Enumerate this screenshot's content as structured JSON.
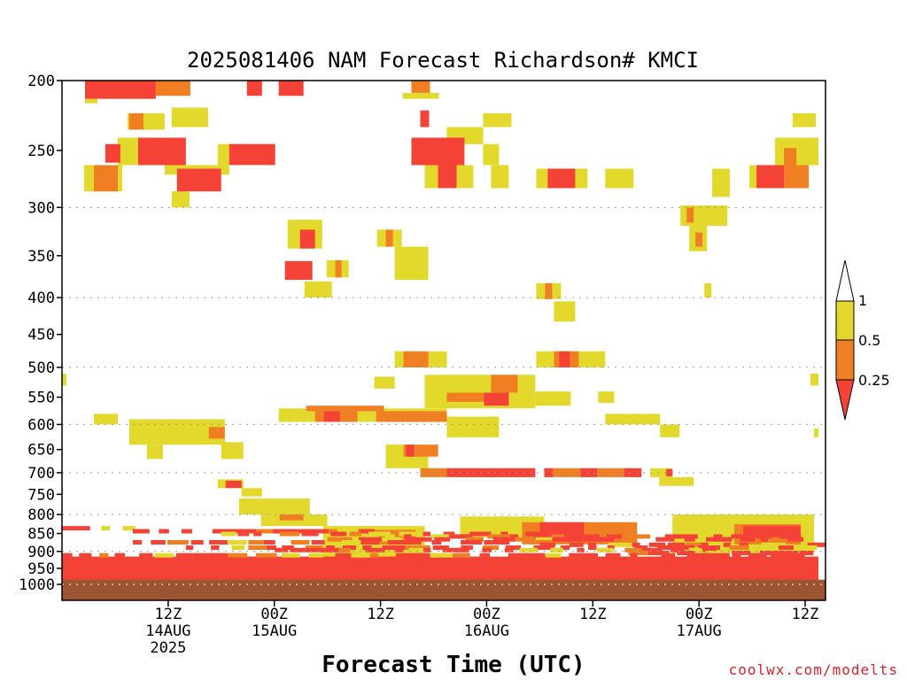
{
  "chart_data": {
    "type": "heatmap",
    "title": "2025081406 NAM Forecast Richardson# KMCI",
    "xlabel": "Forecast Time (UTC)",
    "ylabel": "",
    "credit": "coolwx.com/modelts",
    "y_scale": "log-pressure (hPa, inverted)",
    "ylim": [
      1000,
      200
    ],
    "y_ticks": [
      "200",
      "250",
      "300",
      "350",
      "400",
      "450",
      "500",
      "550",
      "600",
      "650",
      "700",
      "750",
      "800",
      "850",
      "900",
      "950",
      "1000"
    ],
    "y_gridlines": [
      "300",
      "400",
      "500",
      "600",
      "700",
      "800",
      "900",
      "1000"
    ],
    "x_hour_range": [
      6,
      90
    ],
    "x_ticks": [
      {
        "hour": 18,
        "line1": "12Z",
        "line2": "14AUG",
        "line3": "2025"
      },
      {
        "hour": 30,
        "line1": "00Z",
        "line2": "15AUG",
        "line3": ""
      },
      {
        "hour": 42,
        "line1": "12Z",
        "line2": "",
        "line3": ""
      },
      {
        "hour": 54,
        "line1": "00Z",
        "line2": "16AUG",
        "line3": ""
      },
      {
        "hour": 66,
        "line1": "12Z",
        "line2": "",
        "line3": ""
      },
      {
        "hour": 78,
        "line1": "00Z",
        "line2": "17AUG",
        "line3": ""
      },
      {
        "hour": 90,
        "line1": "12Z",
        "line2": "",
        "line3": ""
      }
    ],
    "legend": {
      "placement": "right",
      "levels": [
        "1",
        "0.5",
        "0.25"
      ],
      "bins": [
        {
          "range": "< 0.25",
          "color": "#f44336"
        },
        {
          "range": "0.25 - 0.5",
          "color": "#ef7f22"
        },
        {
          "range": "0.5 - 1",
          "color": "#e2d92c"
        },
        {
          "range": "> 1",
          "color": "#ffffff"
        }
      ]
    },
    "ground_color": "#9b5530",
    "grid": true,
    "regions": [
      {
        "value": "red",
        "t0": 8.6,
        "t1": 16.6,
        "p0": 200,
        "p1": 212
      },
      {
        "value": "orange",
        "t0": 16.6,
        "t1": 20.5,
        "p0": 200,
        "p1": 210
      },
      {
        "value": "yellow",
        "t0": 8.6,
        "t1": 10,
        "p0": 200,
        "p1": 215
      },
      {
        "value": "red",
        "t0": 26.9,
        "t1": 28.6,
        "p0": 200,
        "p1": 210
      },
      {
        "value": "red",
        "t0": 30.5,
        "t1": 33.3,
        "p0": 200,
        "p1": 210
      },
      {
        "value": "orange",
        "t0": 45.5,
        "t1": 47.6,
        "p0": 200,
        "p1": 208
      },
      {
        "value": "yellow",
        "t0": 44.5,
        "t1": 48.6,
        "p0": 208,
        "p1": 212
      },
      {
        "value": "yellow",
        "t0": 13.4,
        "t1": 17.6,
        "p0": 222,
        "p1": 234
      },
      {
        "value": "orange",
        "t0": 13.6,
        "t1": 15.2,
        "p0": 222,
        "p1": 234
      },
      {
        "value": "yellow",
        "t0": 18.4,
        "t1": 22.5,
        "p0": 218,
        "p1": 232
      },
      {
        "value": "red",
        "t0": 14.6,
        "t1": 20,
        "p0": 240,
        "p1": 262
      },
      {
        "value": "yellow",
        "t0": 12.3,
        "t1": 14.6,
        "p0": 240,
        "p1": 262
      },
      {
        "value": "red",
        "t0": 24.9,
        "t1": 30.1,
        "p0": 245,
        "p1": 262
      },
      {
        "value": "yellow",
        "t0": 23.6,
        "t1": 25,
        "p0": 245,
        "p1": 262
      },
      {
        "value": "red",
        "t0": 10.9,
        "t1": 12.6,
        "p0": 245,
        "p1": 260
      },
      {
        "value": "yellow",
        "t0": 8.5,
        "t1": 12.8,
        "p0": 262,
        "p1": 285
      },
      {
        "value": "orange",
        "t0": 9.6,
        "t1": 12.3,
        "p0": 262,
        "p1": 285
      },
      {
        "value": "red",
        "t0": 19,
        "t1": 24,
        "p0": 265,
        "p1": 285
      },
      {
        "value": "yellow",
        "t0": 17.6,
        "t1": 24.9,
        "p0": 262,
        "p1": 270
      },
      {
        "value": "yellow",
        "t0": 18.4,
        "t1": 20.4,
        "p0": 285,
        "p1": 300
      },
      {
        "value": "red",
        "t0": 45.5,
        "t1": 51.5,
        "p0": 240,
        "p1": 262
      },
      {
        "value": "yellow",
        "t0": 49.5,
        "t1": 53.6,
        "p0": 232,
        "p1": 245
      },
      {
        "value": "red",
        "t0": 48.5,
        "t1": 50.6,
        "p0": 262,
        "p1": 282
      },
      {
        "value": "yellow",
        "t0": 47,
        "t1": 52.5,
        "p0": 262,
        "p1": 282
      },
      {
        "value": "red",
        "t0": 46.5,
        "t1": 47.5,
        "p0": 220,
        "p1": 232
      },
      {
        "value": "yellow",
        "t0": 53.6,
        "t1": 55.4,
        "p0": 245,
        "p1": 262
      },
      {
        "value": "yellow",
        "t0": 53.6,
        "t1": 56.8,
        "p0": 222,
        "p1": 232
      },
      {
        "value": "yellow",
        "t0": 54.5,
        "t1": 56.5,
        "p0": 262,
        "p1": 282
      },
      {
        "value": "red",
        "t0": 60.9,
        "t1": 64,
        "p0": 265,
        "p1": 282
      },
      {
        "value": "yellow",
        "t0": 59.6,
        "t1": 65.4,
        "p0": 265,
        "p1": 282
      },
      {
        "value": "yellow",
        "t0": 67.4,
        "t1": 70.6,
        "p0": 265,
        "p1": 282
      },
      {
        "value": "yellow",
        "t0": 79.5,
        "t1": 81.5,
        "p0": 265,
        "p1": 290
      },
      {
        "value": "red",
        "t0": 84.5,
        "t1": 87.6,
        "p0": 262,
        "p1": 282
      },
      {
        "value": "orange",
        "t0": 87.6,
        "t1": 90.4,
        "p0": 262,
        "p1": 282
      },
      {
        "value": "yellow",
        "t0": 83.7,
        "t1": 84.5,
        "p0": 262,
        "p1": 282
      },
      {
        "value": "yellow",
        "t0": 86.6,
        "t1": 91.5,
        "p0": 240,
        "p1": 262
      },
      {
        "value": "orange",
        "t0": 87.6,
        "t1": 89,
        "p0": 248,
        "p1": 262
      },
      {
        "value": "yellow",
        "t0": 88.6,
        "t1": 91.2,
        "p0": 222,
        "p1": 232
      },
      {
        "value": "orange",
        "t0": 76.6,
        "t1": 77.4,
        "p0": 300,
        "p1": 315
      },
      {
        "value": "yellow",
        "t0": 75.9,
        "t1": 81.2,
        "p0": 298,
        "p1": 318
      },
      {
        "value": "orange",
        "t0": 77.6,
        "t1": 78.4,
        "p0": 325,
        "p1": 340
      },
      {
        "value": "yellow",
        "t0": 76.9,
        "t1": 78.9,
        "p0": 318,
        "p1": 345
      },
      {
        "value": "red",
        "t0": 32.9,
        "t1": 34.6,
        "p0": 322,
        "p1": 342
      },
      {
        "value": "yellow",
        "t0": 31.5,
        "t1": 35.4,
        "p0": 312,
        "p1": 342
      },
      {
        "value": "red",
        "t0": 31.2,
        "t1": 34.3,
        "p0": 356,
        "p1": 378
      },
      {
        "value": "orange",
        "t0": 36.9,
        "t1": 37.6,
        "p0": 355,
        "p1": 375
      },
      {
        "value": "yellow",
        "t0": 35.9,
        "t1": 38.4,
        "p0": 355,
        "p1": 375
      },
      {
        "value": "yellow",
        "t0": 33.4,
        "t1": 36.5,
        "p0": 380,
        "p1": 400
      },
      {
        "value": "orange",
        "t0": 42.6,
        "t1": 43.4,
        "p0": 322,
        "p1": 340
      },
      {
        "value": "yellow",
        "t0": 41.6,
        "t1": 44.4,
        "p0": 322,
        "p1": 340
      },
      {
        "value": "yellow",
        "t0": 43.6,
        "t1": 47.4,
        "p0": 340,
        "p1": 378
      },
      {
        "value": "yellow",
        "t0": 59.6,
        "t1": 62.4,
        "p0": 382,
        "p1": 402
      },
      {
        "value": "orange",
        "t0": 60.6,
        "t1": 61.4,
        "p0": 382,
        "p1": 402
      },
      {
        "value": "yellow",
        "t0": 61.6,
        "t1": 64,
        "p0": 405,
        "p1": 432
      },
      {
        "value": "yellow",
        "t0": 78.6,
        "t1": 79.4,
        "p0": 382,
        "p1": 400
      },
      {
        "value": "orange",
        "t0": 44.6,
        "t1": 47.4,
        "p0": 475,
        "p1": 500
      },
      {
        "value": "yellow",
        "t0": 43.6,
        "t1": 49.5,
        "p0": 475,
        "p1": 500
      },
      {
        "value": "orange",
        "t0": 61.6,
        "t1": 64.4,
        "p0": 475,
        "p1": 500
      },
      {
        "value": "red",
        "t0": 62.2,
        "t1": 63.4,
        "p0": 475,
        "p1": 500
      },
      {
        "value": "yellow",
        "t0": 59.6,
        "t1": 67.4,
        "p0": 475,
        "p1": 500
      },
      {
        "value": "yellow",
        "t0": 41.3,
        "t1": 43.6,
        "p0": 515,
        "p1": 535
      },
      {
        "value": "yellow",
        "t0": 6,
        "t1": 6.5,
        "p0": 510,
        "p1": 530
      },
      {
        "value": "yellow",
        "t0": 90.6,
        "t1": 91.5,
        "p0": 510,
        "p1": 530
      },
      {
        "value": "orange",
        "t0": 49.5,
        "t1": 56.5,
        "p0": 542,
        "p1": 558
      },
      {
        "value": "red",
        "t0": 53.7,
        "t1": 56.5,
        "p0": 542,
        "p1": 565
      },
      {
        "value": "orange",
        "t0": 54.5,
        "t1": 57.5,
        "p0": 512,
        "p1": 542
      },
      {
        "value": "yellow",
        "t0": 47,
        "t1": 59.5,
        "p0": 512,
        "p1": 570
      },
      {
        "value": "yellow",
        "t0": 59.5,
        "t1": 63.5,
        "p0": 540,
        "p1": 565
      },
      {
        "value": "yellow",
        "t0": 66.6,
        "t1": 68.4,
        "p0": 540,
        "p1": 560
      },
      {
        "value": "orange",
        "t0": 33.6,
        "t1": 42.4,
        "p0": 565,
        "p1": 575
      },
      {
        "value": "red",
        "t0": 35.6,
        "t1": 37.4,
        "p0": 575,
        "p1": 595
      },
      {
        "value": "orange",
        "t0": 34.6,
        "t1": 39.4,
        "p0": 575,
        "p1": 595
      },
      {
        "value": "orange",
        "t0": 41.5,
        "t1": 49.5,
        "p0": 575,
        "p1": 595
      },
      {
        "value": "yellow",
        "t0": 30.5,
        "t1": 49.5,
        "p0": 570,
        "p1": 595
      },
      {
        "value": "yellow",
        "t0": 49.5,
        "t1": 55.4,
        "p0": 585,
        "p1": 625
      },
      {
        "value": "yellow",
        "t0": 9.6,
        "t1": 12.3,
        "p0": 580,
        "p1": 600
      },
      {
        "value": "yellow",
        "t0": 13.6,
        "t1": 24.4,
        "p0": 590,
        "p1": 640
      },
      {
        "value": "orange",
        "t0": 22.6,
        "t1": 24.4,
        "p0": 605,
        "p1": 628
      },
      {
        "value": "yellow",
        "t0": 15.6,
        "t1": 17.4,
        "p0": 640,
        "p1": 670
      },
      {
        "value": "yellow",
        "t0": 24,
        "t1": 26.5,
        "p0": 635,
        "p1": 670
      },
      {
        "value": "yellow",
        "t0": 67.4,
        "t1": 73.6,
        "p0": 580,
        "p1": 600
      },
      {
        "value": "yellow",
        "t0": 73.6,
        "t1": 75.8,
        "p0": 600,
        "p1": 625
      },
      {
        "value": "orange",
        "t0": 44.6,
        "t1": 48.5,
        "p0": 640,
        "p1": 665
      },
      {
        "value": "red",
        "t0": 44.9,
        "t1": 45.8,
        "p0": 640,
        "p1": 665
      },
      {
        "value": "yellow",
        "t0": 42.6,
        "t1": 47.4,
        "p0": 640,
        "p1": 690
      },
      {
        "value": "yellow",
        "t0": 91,
        "t1": 91.5,
        "p0": 608,
        "p1": 625
      },
      {
        "value": "red",
        "t0": 49.5,
        "t1": 59.5,
        "p0": 690,
        "p1": 710
      },
      {
        "value": "orange",
        "t0": 46.5,
        "t1": 49.5,
        "p0": 690,
        "p1": 710
      },
      {
        "value": "red",
        "t0": 60.5,
        "t1": 61.5,
        "p0": 690,
        "p1": 710
      },
      {
        "value": "orange",
        "t0": 61.5,
        "t1": 64.6,
        "p0": 690,
        "p1": 710
      },
      {
        "value": "red",
        "t0": 64.6,
        "t1": 66.5,
        "p0": 690,
        "p1": 710
      },
      {
        "value": "orange",
        "t0": 66.5,
        "t1": 69.5,
        "p0": 690,
        "p1": 710
      },
      {
        "value": "red",
        "t0": 69.5,
        "t1": 71.5,
        "p0": 690,
        "p1": 710
      },
      {
        "value": "yellow",
        "t0": 72.5,
        "t1": 75,
        "p0": 690,
        "p1": 710
      },
      {
        "value": "red",
        "t0": 74.3,
        "t1": 75,
        "p0": 692,
        "p1": 708
      },
      {
        "value": "yellow",
        "t0": 73.5,
        "t1": 77.4,
        "p0": 710,
        "p1": 730
      },
      {
        "value": "red",
        "t0": 24.5,
        "t1": 26.3,
        "p0": 718,
        "p1": 735
      },
      {
        "value": "yellow",
        "t0": 23.6,
        "t1": 26.5,
        "p0": 715,
        "p1": 735
      },
      {
        "value": "yellow",
        "t0": 26.3,
        "t1": 28.6,
        "p0": 735,
        "p1": 755
      },
      {
        "value": "yellow",
        "t0": 26,
        "t1": 34,
        "p0": 760,
        "p1": 800
      },
      {
        "value": "orange",
        "t0": 30.6,
        "t1": 33.3,
        "p0": 800,
        "p1": 815
      },
      {
        "value": "yellow",
        "t0": 28.5,
        "t1": 36,
        "p0": 800,
        "p1": 830
      },
      {
        "value": "orange",
        "t0": 40.5,
        "t1": 46,
        "p0": 840,
        "p1": 880
      },
      {
        "value": "yellow",
        "t0": 35.5,
        "t1": 47,
        "p0": 830,
        "p1": 920
      },
      {
        "value": "orange",
        "t0": 58,
        "t1": 71,
        "p0": 820,
        "p1": 880
      },
      {
        "value": "red",
        "t0": 60,
        "t1": 65,
        "p0": 820,
        "p1": 870
      },
      {
        "value": "yellow",
        "t0": 51,
        "t1": 60.5,
        "p0": 805,
        "p1": 860
      },
      {
        "value": "orange",
        "t0": 82,
        "t1": 89.5,
        "p0": 825,
        "p1": 880
      },
      {
        "value": "red",
        "t0": 83,
        "t1": 89.5,
        "p0": 830,
        "p1": 860
      },
      {
        "value": "yellow",
        "t0": 75,
        "t1": 91,
        "p0": 800,
        "p1": 905
      },
      {
        "value": "red",
        "t0": 6,
        "t1": 91.5,
        "p0": 915,
        "p1": 990
      },
      {
        "value": "orange",
        "t0": 6,
        "t1": 12,
        "p0": 920,
        "p1": 960
      },
      {
        "value": "yellow",
        "t0": 6,
        "t1": 12,
        "p0": 960,
        "p1": 975
      }
    ]
  }
}
